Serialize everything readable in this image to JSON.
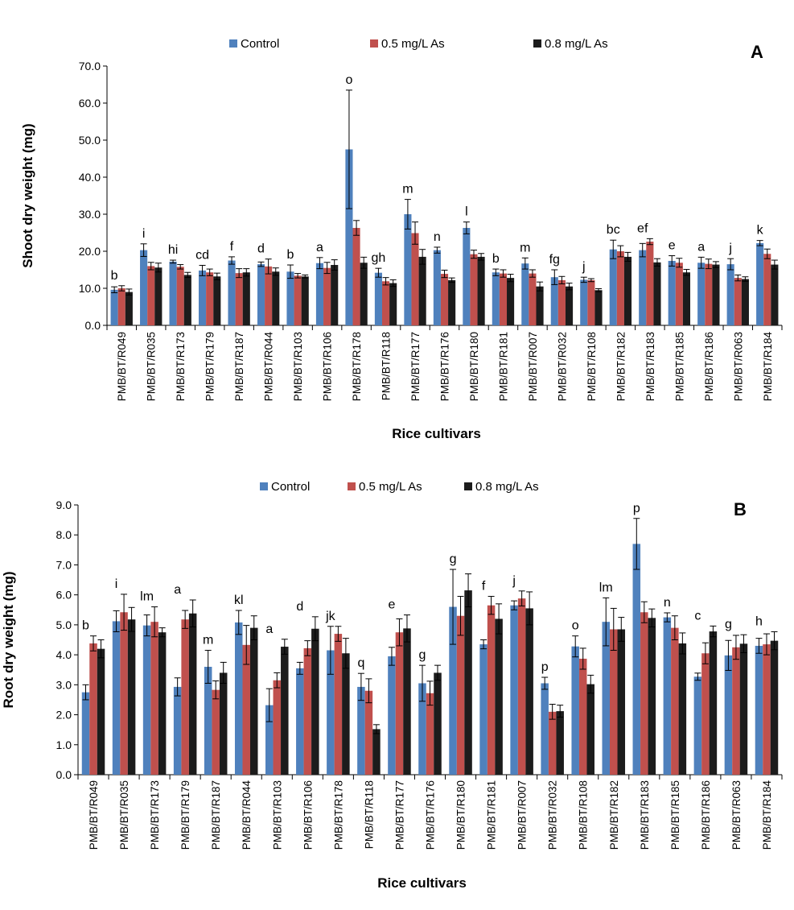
{
  "colors": {
    "control": "#4F81BD",
    "as05": "#C0504D",
    "as08": "#1C1C1C"
  },
  "chart_data": [
    {
      "panel": "A",
      "type": "bar",
      "ylabel": "Shoot dry weight (mg)",
      "xlabel": "Rice cultivars",
      "ylim": [
        0,
        70
      ],
      "ytick_step": 10,
      "yticks": [
        "0.0",
        "10.0",
        "20.0",
        "30.0",
        "40.0",
        "50.0",
        "60.0",
        "70.0"
      ],
      "legend_position": "top",
      "categories": [
        "PMB/BT/R049",
        "PMB/BT/R035",
        "PMB/BT/R173",
        "PMB/BT/R179",
        "PMB/BT/R187",
        "PMB/BT/R044",
        "PMB/BT/R103",
        "PMB/BT/R106",
        "PMB/BT/R178",
        "PMB/BT/R118",
        "PMB/BT/R177",
        "PMB/BT/R176",
        "PMB/BT/R180",
        "PMB/BT/R181",
        "PMB/BT/R007",
        "PMB/BT/R032",
        "PMB/BT/R108",
        "PMB/BT/R182",
        "PMB/BT/R183",
        "PMB/BT/R185",
        "PMB/BT/R186",
        "PMB/BT/R063",
        "PMB/BT/R184"
      ],
      "letters": [
        "b",
        "i",
        "hi",
        "cd",
        "f",
        "d",
        "b",
        "a",
        "o",
        "gh",
        "m",
        "n",
        "l",
        "b",
        "m",
        "fg",
        "j",
        "bc",
        "ef",
        "e",
        "a",
        "j",
        "k"
      ],
      "series": [
        {
          "name": "Control",
          "color_key": "control",
          "values": [
            9.6,
            20.3,
            17.2,
            14.8,
            17.5,
            16.5,
            14.5,
            16.8,
            47.5,
            14.2,
            30.0,
            20.3,
            26.3,
            14.3,
            16.7,
            13.0,
            12.3,
            20.5,
            20.3,
            17.4,
            16.9,
            16.5,
            22.2
          ],
          "errors": [
            0.8,
            1.7,
            0.4,
            1.4,
            1.0,
            0.6,
            1.8,
            1.5,
            16.0,
            1.2,
            4.0,
            0.8,
            1.6,
            0.9,
            1.5,
            2.0,
            0.7,
            2.5,
            1.8,
            1.4,
            1.5,
            1.5,
            0.7
          ]
        },
        {
          "name": "0.5 mg/L As",
          "color_key": "as05",
          "values": [
            10.0,
            16.0,
            15.8,
            14.3,
            14.1,
            15.9,
            13.4,
            15.5,
            26.3,
            11.9,
            24.9,
            13.9,
            19.2,
            14.0,
            14.0,
            12.2,
            12.2,
            20.0,
            22.6,
            16.9,
            16.6,
            12.8,
            19.3
          ],
          "errors": [
            0.7,
            1.0,
            0.6,
            0.9,
            1.2,
            2.0,
            0.6,
            1.5,
            2.0,
            1.0,
            3.0,
            1.0,
            1.1,
            1.0,
            1.0,
            1.0,
            0.4,
            1.5,
            0.8,
            1.2,
            1.3,
            0.8,
            1.3
          ]
        },
        {
          "name": "0.8 mg/L As",
          "color_key": "as08",
          "values": [
            9.0,
            15.6,
            13.6,
            13.2,
            14.3,
            14.5,
            13.2,
            16.3,
            16.9,
            11.4,
            18.5,
            12.2,
            18.5,
            12.8,
            10.5,
            10.5,
            9.5,
            18.5,
            17.0,
            14.3,
            16.4,
            12.5,
            16.4
          ],
          "errors": [
            0.8,
            1.2,
            0.7,
            0.9,
            1.0,
            1.0,
            0.4,
            1.4,
            1.5,
            0.9,
            2.0,
            0.6,
            0.9,
            1.0,
            1.2,
            0.9,
            0.4,
            1.2,
            1.0,
            0.8,
            0.8,
            0.6,
            1.2
          ]
        }
      ]
    },
    {
      "panel": "B",
      "type": "bar",
      "ylabel": "Root dry weight (mg)",
      "xlabel": "Rice cultivars",
      "ylim": [
        0,
        9
      ],
      "ytick_step": 1,
      "yticks": [
        "0.0",
        "1.0",
        "2.0",
        "3.0",
        "4.0",
        "5.0",
        "6.0",
        "7.0",
        "8.0",
        "9.0"
      ],
      "legend_position": "top",
      "categories": [
        "PMB/BT/R049",
        "PMB/BT/R035",
        "PMB/BT/R173",
        "PMB/BT/R179",
        "PMB/BT/R187",
        "PMB/BT/R044",
        "PMB/BT/R103",
        "PMB/BT/R106",
        "PMB/BT/R178",
        "PMB/BT/R118",
        "PMB/BT/R177",
        "PMB/BT/R176",
        "PMB/BT/R180",
        "PMB/BT/R181",
        "PMB/BT/R007",
        "PMB/BT/R032",
        "PMB/BT/R108",
        "PMB/BT/R182",
        "PMB/BT/R183",
        "PMB/BT/R185",
        "PMB/BT/R186",
        "PMB/BT/R063",
        "PMB/BT/R184"
      ],
      "letters": [
        "b",
        "i",
        "lm",
        "a",
        "m",
        "kl",
        "a",
        "d",
        "jk",
        "q",
        "e",
        "g",
        "g",
        "f",
        "j",
        "p",
        "o",
        "lm",
        "p",
        "n",
        "c",
        "g",
        "h"
      ],
      "series": [
        {
          "name": "Control",
          "color_key": "control",
          "values": [
            2.75,
            5.12,
            4.98,
            2.93,
            3.6,
            5.08,
            2.32,
            3.55,
            4.15,
            2.93,
            3.95,
            3.05,
            5.6,
            4.35,
            5.65,
            3.05,
            4.28,
            5.1,
            7.7,
            5.25,
            3.27,
            3.98,
            4.3
          ],
          "errors": [
            0.25,
            0.35,
            0.35,
            0.3,
            0.55,
            0.4,
            0.55,
            0.2,
            0.8,
            0.45,
            0.3,
            0.6,
            1.25,
            0.15,
            0.15,
            0.2,
            0.35,
            0.8,
            0.85,
            0.15,
            0.12,
            0.5,
            0.25
          ]
        },
        {
          "name": "0.5 mg/L As",
          "color_key": "as05",
          "values": [
            4.38,
            5.42,
            5.1,
            5.18,
            2.83,
            4.33,
            3.15,
            4.22,
            4.7,
            2.8,
            4.75,
            2.72,
            5.3,
            5.65,
            5.88,
            2.1,
            3.87,
            4.85,
            5.42,
            4.9,
            4.05,
            4.25,
            4.35
          ],
          "errors": [
            0.25,
            0.6,
            0.5,
            0.3,
            0.3,
            0.65,
            0.25,
            0.25,
            0.25,
            0.4,
            0.45,
            0.4,
            0.65,
            0.3,
            0.25,
            0.25,
            0.35,
            0.7,
            0.35,
            0.4,
            0.35,
            0.4,
            0.35
          ]
        },
        {
          "name": "0.8 mg/L As",
          "color_key": "as08",
          "values": [
            4.2,
            5.18,
            4.75,
            5.38,
            3.4,
            4.9,
            4.27,
            4.87,
            4.05,
            1.52,
            4.88,
            3.4,
            6.15,
            5.2,
            5.55,
            2.12,
            3.02,
            4.85,
            5.23,
            4.38,
            4.78,
            4.37,
            4.47
          ],
          "errors": [
            0.3,
            0.4,
            0.15,
            0.45,
            0.35,
            0.4,
            0.25,
            0.4,
            0.5,
            0.15,
            0.45,
            0.25,
            0.55,
            0.5,
            0.55,
            0.2,
            0.3,
            0.4,
            0.3,
            0.35,
            0.18,
            0.3,
            0.3
          ]
        }
      ]
    }
  ]
}
